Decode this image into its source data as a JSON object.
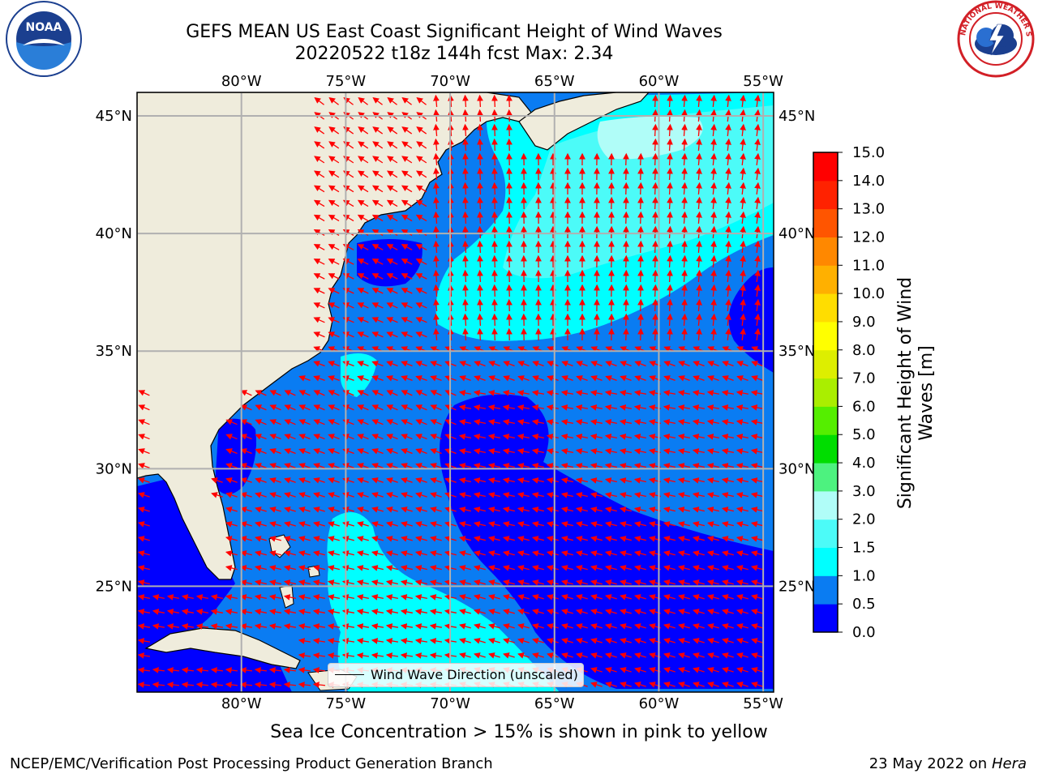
{
  "title": {
    "line1": "GEFS MEAN US East Coast Significant Height of Wind Waves",
    "line2": "20220522 t18z 144h fcst    Max: 2.34"
  },
  "axes": {
    "lon_ticks": [
      {
        "value": -80,
        "label": "80°W"
      },
      {
        "value": -75,
        "label": "75°W"
      },
      {
        "value": -70,
        "label": "70°W"
      },
      {
        "value": -65,
        "label": "65°W"
      },
      {
        "value": -60,
        "label": "60°W"
      },
      {
        "value": -55,
        "label": "55°W"
      }
    ],
    "lat_ticks": [
      {
        "value": 45,
        "label": "45°N"
      },
      {
        "value": 40,
        "label": "40°N"
      },
      {
        "value": 35,
        "label": "35°N"
      },
      {
        "value": 30,
        "label": "30°N"
      },
      {
        "value": 25,
        "label": "25°N"
      }
    ],
    "lon_range": [
      -85,
      -54.5
    ],
    "lat_range": [
      20.5,
      46
    ]
  },
  "colorbar": {
    "label": "Significant Height of Wind Waves [m]",
    "ticks": [
      "0.0",
      "0.5",
      "1.0",
      "1.5",
      "2.0",
      "3.0",
      "4.0",
      "5.0",
      "6.0",
      "7.0",
      "8.0",
      "9.0",
      "10.0",
      "11.0",
      "12.0",
      "13.0",
      "14.0",
      "15.0"
    ],
    "colors": [
      "#0000ff",
      "#0a7cf2",
      "#00ffff",
      "#4cfbf8",
      "#b0fdf8",
      "#4df27f",
      "#00dd00",
      "#55ee00",
      "#aaee00",
      "#ddee00",
      "#ffff00",
      "#ffdd00",
      "#ffb000",
      "#ff8800",
      "#ff5500",
      "#ff2200",
      "#ff0000"
    ]
  },
  "legend": {
    "wind_wave_direction": "Wind Wave Direction (unscaled)"
  },
  "sea_ice_note": "Sea Ice Concentration > 15% is shown in pink to yellow",
  "footer": {
    "left": "NCEP/EMC/Verification Post Processing Product Generation Branch",
    "right_date": "23 May 2022 on",
    "right_machine": "Hera"
  },
  "logos": {
    "noaa": "NOAA",
    "nws": "NATIONAL WEATHER SERVICE"
  },
  "colors": {
    "land": "#efecdc",
    "grid": "#b0b0b0",
    "arrow": "#ff0000",
    "wave_0_05": "#0000ff",
    "wave_05_1": "#0a7cf2",
    "wave_1_15": "#00ffff",
    "wave_15_2": "#4cfbf8",
    "wave_2_3": "#b0fdf8"
  }
}
